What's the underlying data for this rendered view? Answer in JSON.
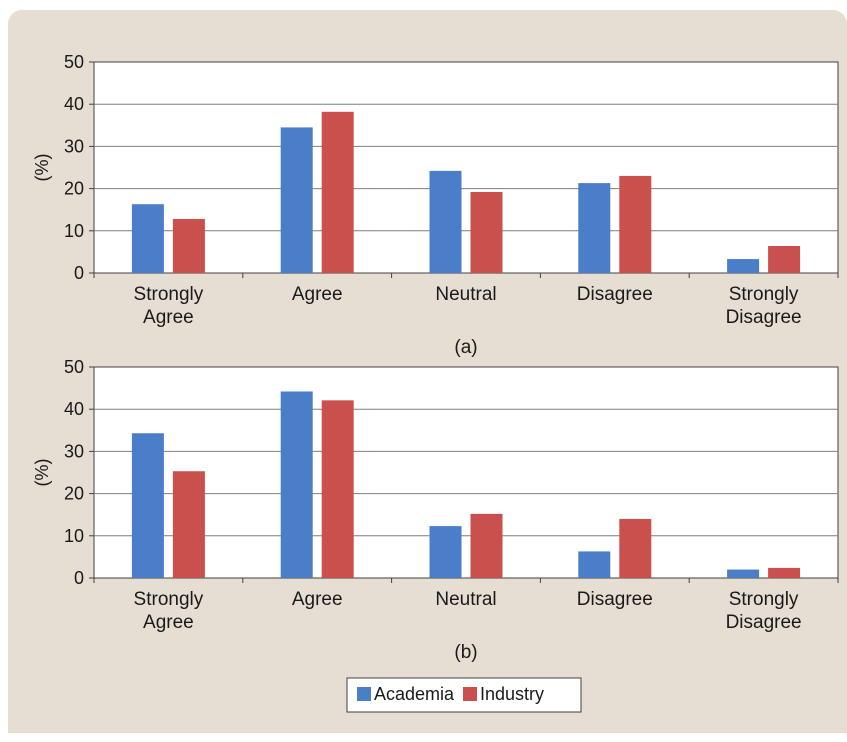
{
  "colors": {
    "panel_background": "#e6ddd3",
    "academia": "#4a7ec9",
    "industry": "#c9504d",
    "grid": "#7f7f7f",
    "axis": "#404040"
  },
  "chart_data": [
    {
      "type": "bar",
      "caption": "(a)",
      "categories": [
        "Strongly\nAgree",
        "Agree",
        "Neutral",
        "Disagree",
        "Strongly\nDisagree"
      ],
      "ylabel": "(%)",
      "ylim": [
        0,
        50
      ],
      "yticks": [
        0,
        10,
        20,
        30,
        40,
        50
      ],
      "grid": true,
      "series": [
        {
          "name": "Academia",
          "values": [
            16.3,
            34.5,
            24.2,
            21.3,
            3.3
          ]
        },
        {
          "name": "Industry",
          "values": [
            12.8,
            38.2,
            19.2,
            23.0,
            6.4
          ]
        }
      ]
    },
    {
      "type": "bar",
      "caption": "(b)",
      "categories": [
        "Strongly\nAgree",
        "Agree",
        "Neutral",
        "Disagree",
        "Strongly\nDisagree"
      ],
      "ylabel": "(%)",
      "ylim": [
        0,
        50
      ],
      "yticks": [
        0,
        10,
        20,
        30,
        40,
        50
      ],
      "grid": true,
      "series": [
        {
          "name": "Academia",
          "values": [
            34.3,
            44.2,
            12.3,
            6.3,
            2.0
          ]
        },
        {
          "name": "Industry",
          "values": [
            25.3,
            42.1,
            15.2,
            14.0,
            2.4
          ]
        }
      ]
    }
  ],
  "legend": {
    "placement": "bottom-center",
    "items": [
      "Academia",
      "Industry"
    ]
  }
}
